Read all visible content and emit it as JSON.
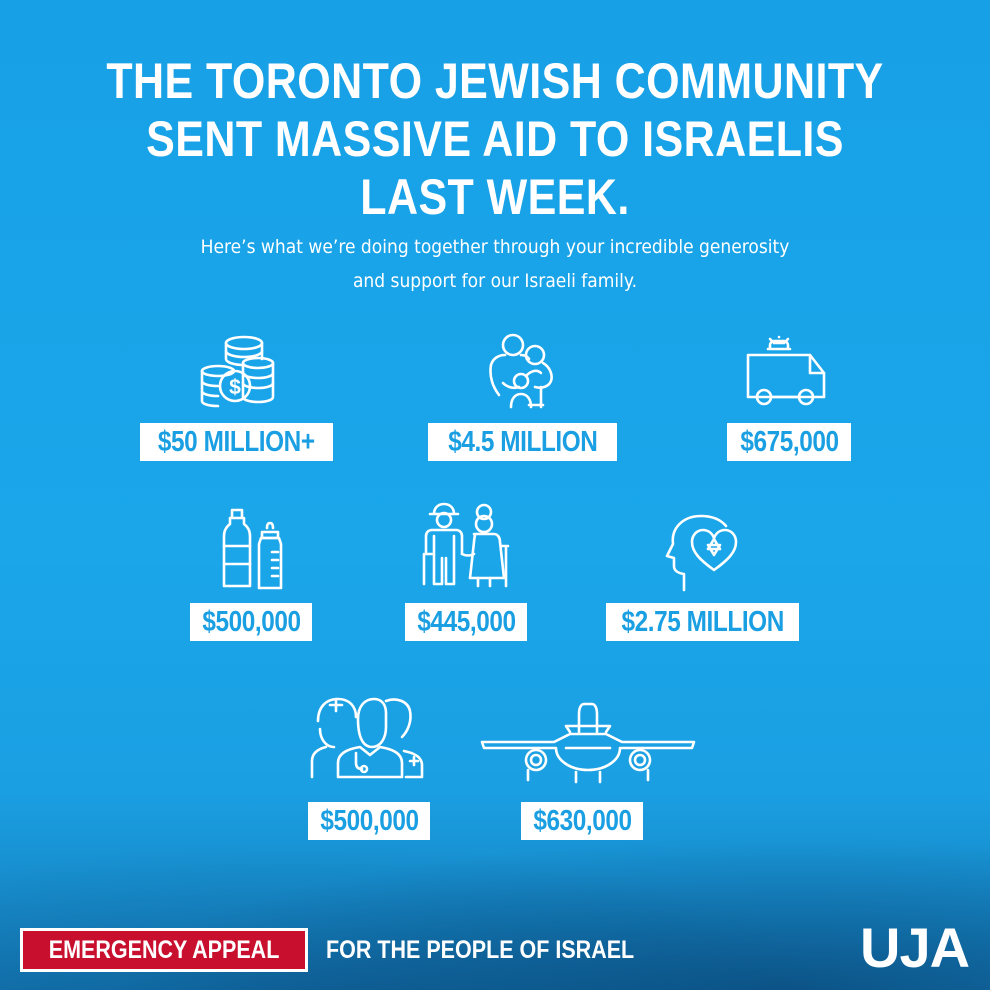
{
  "headline": {
    "line1": "THE TORONTO JEWISH COMMUNITY",
    "line2": "SENT MASSIVE AID TO ISRAELIS",
    "line3": "LAST WEEK."
  },
  "subtitle": {
    "line1": "Here’s what we’re doing together through your incredible generosity",
    "line2": "and support for our Israeli family."
  },
  "items": [
    {
      "icon": "coins-icon",
      "amount": "$50 MILLION+"
    },
    {
      "icon": "family-icon",
      "amount": "$4.5 MILLION"
    },
    {
      "icon": "ambulance-icon",
      "amount": "$675,000"
    },
    {
      "icon": "bottles-icon",
      "amount": "$500,000"
    },
    {
      "icon": "elderly-couple-icon",
      "amount": "$445,000"
    },
    {
      "icon": "mental-health-icon",
      "amount": "$2.75 MILLION"
    },
    {
      "icon": "medical-staff-icon",
      "amount": "$500,000"
    },
    {
      "icon": "airplane-icon",
      "amount": "$630,000"
    }
  ],
  "footer": {
    "badge": "EMERGENCY APPEAL",
    "text": "FOR THE PEOPLE OF ISRAEL",
    "logo": "UJA"
  },
  "colors": {
    "background": "#1aa3e8",
    "amount_text": "#1a9fe2",
    "badge_red": "#c8102e"
  }
}
